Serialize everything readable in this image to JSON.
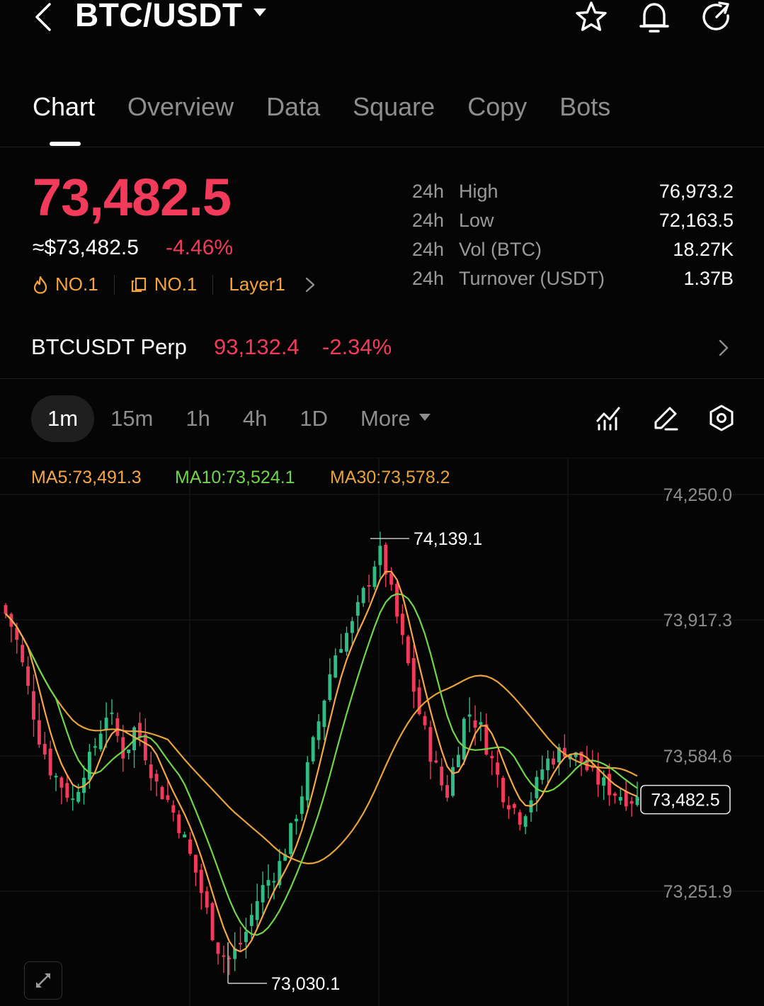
{
  "header": {
    "title": "BTC/USDT",
    "icons": [
      "back-icon",
      "star-icon",
      "bell-icon",
      "refresh-icon"
    ]
  },
  "tabs": [
    "Chart",
    "Overview",
    "Data",
    "Square",
    "Copy",
    "Bots"
  ],
  "active_tab": "Chart",
  "price": {
    "last": "73,482.5",
    "fiat": "≈$73,482.5",
    "change": "-4.46%",
    "color_down": "#f23b5a",
    "color_up": "#2ebd85"
  },
  "tags": [
    {
      "icon": "flame-icon",
      "label": "NO.1"
    },
    {
      "icon": "copy-rank-icon",
      "label": "NO.1"
    },
    {
      "icon": "",
      "label": "Layer1"
    }
  ],
  "stats": [
    {
      "period": "24h",
      "label": "High",
      "value": "76,973.2"
    },
    {
      "period": "24h",
      "label": "Low",
      "value": "72,163.5"
    },
    {
      "period": "24h",
      "label": "Vol (BTC)",
      "value": "18.27K"
    },
    {
      "period": "24h",
      "label": "Turnover (USDT)",
      "value": "1.37B"
    }
  ],
  "perp": {
    "name": "BTCUSDT Perp",
    "price": "93,132.4",
    "change": "-2.34%"
  },
  "intervals": [
    "1m",
    "15m",
    "1h",
    "4h",
    "1D"
  ],
  "active_interval": "1m",
  "more_label": "More",
  "chart": {
    "ma5": "MA5:73,491.3",
    "ma10": "MA10:73,524.1",
    "ma30": "MA30:73,578.2",
    "ma5_color": "#f5a54a",
    "ma10_color": "#6fd54b",
    "ma30_color": "#e8a23b",
    "y_labels": [
      "74,250.0",
      "73,917.3",
      "73,584.6",
      "73,251.9"
    ],
    "last_price_label": "73,482.5",
    "high_marker": "74,139.1",
    "low_marker": "73,030.1"
  },
  "chart_data": {
    "type": "candlestick",
    "y_ticks": [
      74250.0,
      73917.3,
      73584.6,
      73251.9
    ],
    "ylim": [
      73030.1,
      74250.0
    ],
    "high": 74139.1,
    "low": 73030.1,
    "last": 73482.5,
    "indicators": {
      "MA5": 73491.3,
      "MA10": 73524.1,
      "MA30": 73578.2
    },
    "close_series": [
      73950,
      73920,
      73880,
      73820,
      73760,
      73700,
      73640,
      73600,
      73560,
      73540,
      73520,
      73500,
      73480,
      73520,
      73560,
      73580,
      73620,
      73660,
      73700,
      73680,
      73640,
      73600,
      73620,
      73660,
      73640,
      73600,
      73560,
      73520,
      73500,
      73480,
      73450,
      73420,
      73380,
      73340,
      73300,
      73250,
      73200,
      73150,
      73110,
      73090,
      73080,
      73100,
      73120,
      73150,
      73190,
      73230,
      73260,
      73280,
      73300,
      73320,
      73360,
      73400,
      73450,
      73500,
      73560,
      73620,
      73680,
      73740,
      73800,
      73850,
      73880,
      73900,
      73920,
      73960,
      74000,
      74040,
      74080,
      74100,
      74060,
      74000,
      73940,
      73880,
      73820,
      73760,
      73700,
      73650,
      73600,
      73560,
      73520,
      73500,
      73560,
      73620,
      73680,
      73700,
      73680,
      73660,
      73620,
      73580,
      73540,
      73500,
      73480,
      73460,
      73440,
      73460,
      73490,
      73520,
      73560,
      73580,
      73590,
      73600,
      73610,
      73600,
      73590,
      73580,
      73560,
      73540,
      73530,
      73520,
      73510,
      73500,
      73495,
      73490,
      73485,
      73483
    ]
  }
}
